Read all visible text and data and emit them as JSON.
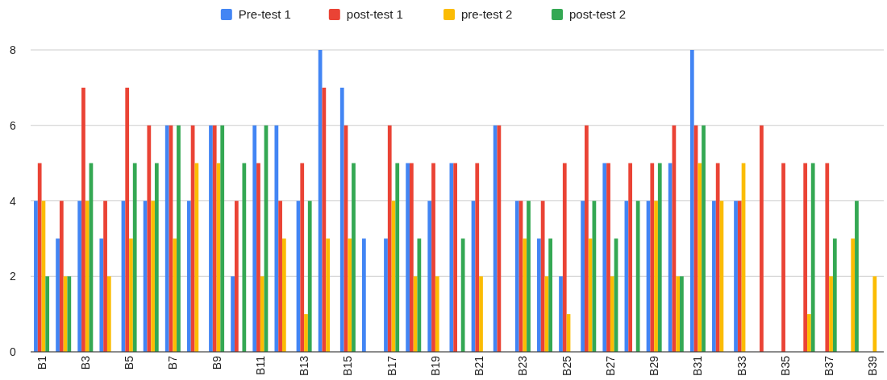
{
  "chart_data": {
    "type": "bar",
    "categories": [
      "B1",
      null,
      "B3",
      null,
      "B5",
      null,
      "B7",
      null,
      "B9",
      null,
      "B11",
      null,
      "B13",
      null,
      "B15",
      null,
      "B17",
      null,
      "B19",
      null,
      "B21",
      null,
      "B23",
      null,
      "B25",
      null,
      "B27",
      null,
      "B29",
      null,
      "B31",
      null,
      "B33",
      null,
      "B35",
      null,
      "B37",
      null,
      "B39"
    ],
    "series": [
      {
        "name": "Pre-test 1",
        "color": "#4285f4",
        "values": [
          4,
          3,
          4,
          3,
          4,
          4,
          6,
          4,
          6,
          2,
          6,
          6,
          4,
          8,
          7,
          3,
          3,
          5,
          4,
          5,
          4,
          6,
          4,
          3,
          2,
          4,
          5,
          4,
          4,
          5,
          8,
          4,
          4,
          null,
          null,
          null,
          null,
          null,
          null
        ]
      },
      {
        "name": "post-test 1",
        "color": "#ea4335",
        "values": [
          5,
          4,
          7,
          4,
          7,
          6,
          6,
          6,
          6,
          4,
          5,
          4,
          5,
          7,
          6,
          null,
          6,
          5,
          5,
          5,
          5,
          6,
          4,
          4,
          5,
          6,
          5,
          5,
          5,
          6,
          6,
          5,
          4,
          6,
          5,
          5,
          5,
          null,
          null
        ]
      },
      {
        "name": "pre-test 2",
        "color": "#fbbc04",
        "values": [
          4,
          2,
          4,
          2,
          3,
          4,
          3,
          5,
          5,
          null,
          2,
          3,
          1,
          3,
          3,
          null,
          4,
          2,
          2,
          null,
          2,
          null,
          3,
          2,
          1,
          3,
          2,
          null,
          4,
          2,
          5,
          4,
          5,
          null,
          null,
          1,
          2,
          3,
          2
        ]
      },
      {
        "name": "post-test 2",
        "color": "#34a853",
        "values": [
          2,
          2,
          5,
          null,
          5,
          5,
          6,
          null,
          6,
          5,
          6,
          null,
          4,
          null,
          5,
          null,
          5,
          3,
          null,
          3,
          null,
          null,
          4,
          3,
          null,
          4,
          3,
          4,
          5,
          2,
          6,
          null,
          null,
          null,
          null,
          5,
          3,
          4,
          null
        ]
      }
    ],
    "ylim": [
      0,
      8
    ],
    "yticks": [
      0,
      2,
      4,
      6,
      8
    ],
    "grid": "y",
    "legend": "top"
  }
}
